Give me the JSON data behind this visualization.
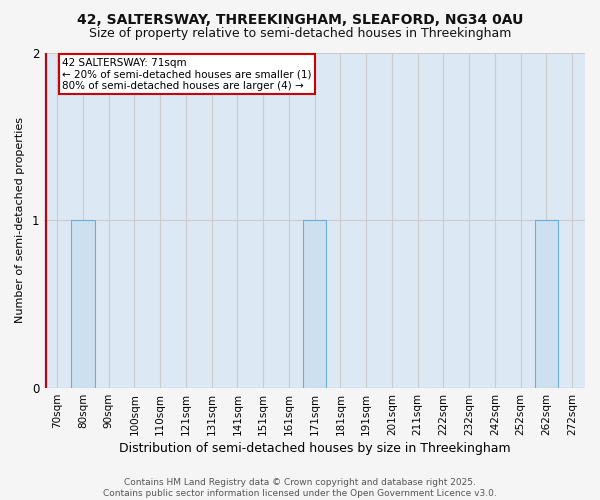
{
  "title": "42, SALTERSWAY, THREEKINGHAM, SLEAFORD, NG34 0AU",
  "subtitle": "Size of property relative to semi-detached houses in Threekingham",
  "xlabel": "Distribution of semi-detached houses by size in Threekingham",
  "ylabel": "Number of semi-detached properties",
  "footer_line1": "Contains HM Land Registry data © Crown copyright and database right 2025.",
  "footer_line2": "Contains public sector information licensed under the Open Government Licence v3.0.",
  "bins": [
    "70sqm",
    "80sqm",
    "90sqm",
    "100sqm",
    "110sqm",
    "121sqm",
    "131sqm",
    "141sqm",
    "151sqm",
    "161sqm",
    "171sqm",
    "181sqm",
    "191sqm",
    "201sqm",
    "211sqm",
    "222sqm",
    "232sqm",
    "242sqm",
    "252sqm",
    "262sqm",
    "272sqm"
  ],
  "values": [
    0,
    1,
    0,
    0,
    0,
    0,
    0,
    0,
    0,
    0,
    1,
    0,
    0,
    0,
    0,
    0,
    0,
    0,
    0,
    1,
    0
  ],
  "bar_fill_color": "#cce0f0",
  "bar_edge_color": "#6aafd6",
  "property_size_sqm": 71,
  "annotation_text_line1": "42 SALTERSWAY: 71sqm",
  "annotation_text_line2": "← 20% of semi-detached houses are smaller (1)",
  "annotation_text_line3": "80% of semi-detached houses are larger (4) →",
  "annotation_box_facecolor": "#ffffff",
  "annotation_border_color": "#cc0000",
  "red_line_color": "#cc0000",
  "grid_color": "#cccccc",
  "plot_bg_color": "#dde8f5",
  "fig_bg_color": "#f5f5f5",
  "ylim": [
    0,
    2
  ],
  "yticks": [
    0,
    1,
    2
  ],
  "title_fontsize": 10,
  "subtitle_fontsize": 9,
  "xlabel_fontsize": 9,
  "ylabel_fontsize": 8,
  "tick_fontsize": 7.5,
  "annotation_fontsize": 7.5,
  "footer_fontsize": 6.5
}
